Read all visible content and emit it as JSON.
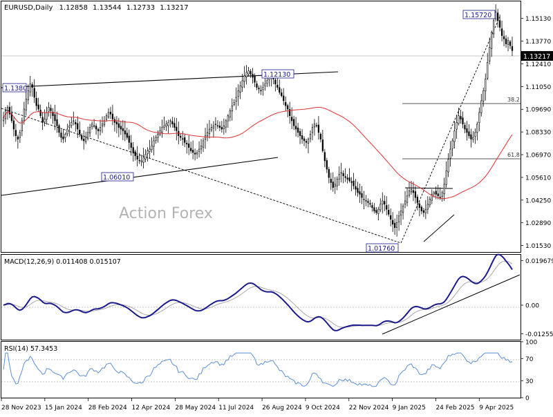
{
  "chart_data": {
    "type": "candlestick",
    "header": {
      "symbol": "EURUSD,Daily",
      "open": "1.12858",
      "high": "1.13544",
      "low": "1.12733",
      "close": "1.13217"
    },
    "watermark": "Action Forex",
    "current_price": "1.13217",
    "x_labels": [
      "28 Nov 2023",
      "15 Jan 2024",
      "28 Feb 2024",
      "12 Apr 2024",
      "28 May 2024",
      "11 Jul 2024",
      "26 Aug 2024",
      "9 Oct 2024",
      "22 Nov 2024",
      "9 Jan 2025",
      "24 Feb 2025",
      "9 Apr 2025"
    ],
    "price_axis": {
      "ylim": [
        1.011,
        1.1615
      ],
      "ticks": [
        "1.15130",
        "1.13770",
        "1.12410",
        "1.11050",
        "1.09690",
        "1.08330",
        "1.06970",
        "1.05610",
        "1.04250",
        "1.02890",
        "1.01530"
      ]
    },
    "annotations": {
      "high_label": "1.15720",
      "low_label": "1.01760",
      "label_1213": "1.12130",
      "label_1138": "1.1380",
      "label_1060": "1.06010",
      "fib_38": "38.2",
      "fib_61": "61.8"
    },
    "fib_levels": {
      "fib_38": 1.1036,
      "fib_61": 1.0706
    },
    "close_series": [
      1.092,
      1.096,
      1.098,
      1.094,
      1.09,
      1.085,
      1.081,
      1.079,
      1.083,
      1.09,
      1.097,
      1.103,
      1.108,
      1.112,
      1.11,
      1.104,
      1.099,
      1.097,
      1.093,
      1.089,
      1.091,
      1.095,
      1.098,
      1.096,
      1.093,
      1.09,
      1.087,
      1.083,
      1.08,
      1.079,
      1.082,
      1.085,
      1.087,
      1.089,
      1.09,
      1.088,
      1.085,
      1.082,
      1.079,
      1.078,
      1.08,
      1.083,
      1.086,
      1.088,
      1.087,
      1.085,
      1.084,
      1.086,
      1.088,
      1.09,
      1.093,
      1.095,
      1.094,
      1.091,
      1.089,
      1.088,
      1.086,
      1.085,
      1.084,
      1.082,
      1.08,
      1.077,
      1.074,
      1.071,
      1.069,
      1.067,
      1.066,
      1.066,
      1.068,
      1.07,
      1.072,
      1.073,
      1.075,
      1.078,
      1.08,
      1.082,
      1.084,
      1.086,
      1.087,
      1.088,
      1.089,
      1.09,
      1.088,
      1.086,
      1.084,
      1.081,
      1.08,
      1.079,
      1.077,
      1.076,
      1.074,
      1.072,
      1.071,
      1.07,
      1.071,
      1.073,
      1.075,
      1.078,
      1.081,
      1.083,
      1.085,
      1.086,
      1.087,
      1.088,
      1.087,
      1.086,
      1.085,
      1.087,
      1.09,
      1.093,
      1.096,
      1.099,
      1.101,
      1.104,
      1.108,
      1.111,
      1.114,
      1.117,
      1.119,
      1.12,
      1.118,
      1.116,
      1.113,
      1.11,
      1.109,
      1.108,
      1.11,
      1.112,
      1.114,
      1.116,
      1.117,
      1.115,
      1.112,
      1.11,
      1.107,
      1.105,
      1.102,
      1.099,
      1.097,
      1.093,
      1.09,
      1.087,
      1.085,
      1.083,
      1.081,
      1.079,
      1.078,
      1.077,
      1.079,
      1.082,
      1.086,
      1.088,
      1.087,
      1.083,
      1.079,
      1.072,
      1.066,
      1.061,
      1.056,
      1.053,
      1.05,
      1.052,
      1.055,
      1.058,
      1.059,
      1.057,
      1.056,
      1.055,
      1.054,
      1.053,
      1.051,
      1.049,
      1.047,
      1.046,
      1.044,
      1.043,
      1.042,
      1.041,
      1.04,
      1.038,
      1.036,
      1.035,
      1.037,
      1.04,
      1.042,
      1.04,
      1.037,
      1.034,
      1.031,
      1.028,
      1.026,
      1.029,
      1.033,
      1.036,
      1.039,
      1.042,
      1.045,
      1.048,
      1.049,
      1.047,
      1.044,
      1.041,
      1.038,
      1.036,
      1.035,
      1.037,
      1.04,
      1.043,
      1.046,
      1.047,
      1.046,
      1.045,
      1.044,
      1.047,
      1.052,
      1.06,
      1.067,
      1.073,
      1.078,
      1.084,
      1.089,
      1.093,
      1.091,
      1.088,
      1.085,
      1.083,
      1.081,
      1.079,
      1.08,
      1.083,
      1.088,
      1.095,
      1.102,
      1.108,
      1.115,
      1.125,
      1.134,
      1.143,
      1.15,
      1.155,
      1.15,
      1.146,
      1.141,
      1.139,
      1.136,
      1.138,
      1.135,
      1.132
    ],
    "macd": {
      "label": "MACD(12,26,9) 0.011408 0.015107",
      "ylim": [
        -0.0152,
        0.0222
      ],
      "ticks": [
        "0.019679",
        "0.00",
        "-0.012552"
      ],
      "current": "0.011408",
      "signal_current": "0.015107"
    },
    "rsi": {
      "label": "RSI(14) 57.3453",
      "ylim": [
        0,
        100
      ],
      "ticks": [
        "100",
        "70",
        "30",
        "0"
      ],
      "levels": [
        70,
        30
      ]
    },
    "colors": {
      "candle": "#000000",
      "ma": "#e03030",
      "macd_main": "#1a1a8c",
      "macd_signal": "#a8a8a8",
      "rsi": "#5b8fd6",
      "watermark": "#b3b3b3",
      "grid_level": "#b4b4b4"
    }
  }
}
